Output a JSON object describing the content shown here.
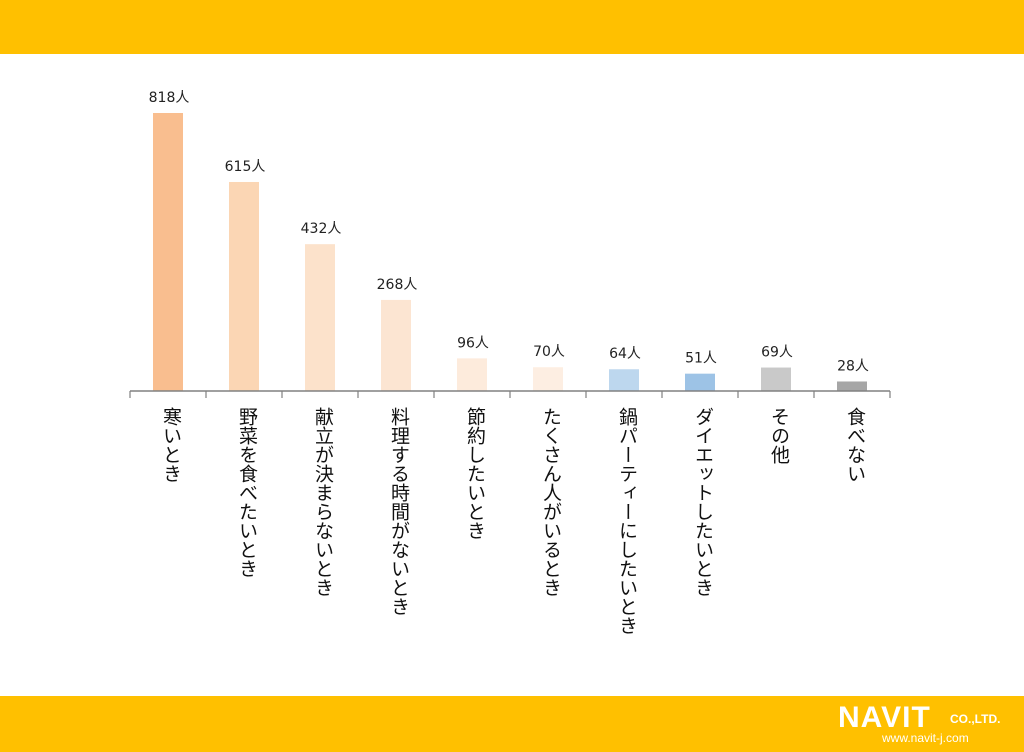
{
  "colors": {
    "band": "#FFC000",
    "axis": "#808080",
    "bars": [
      "#F9BE8F",
      "#FBD6B4",
      "#FCE2CB",
      "#FCE5D2",
      "#FDEBDC",
      "#FDEEE2",
      "#BDD7EE",
      "#9DC3E6",
      "#C9C9C9",
      "#A6A6A6"
    ]
  },
  "logo": {
    "name": "NAVIT",
    "suffix": "CO.,LTD.",
    "url": "www.navit-j.com"
  },
  "chart_data": {
    "type": "bar",
    "categories": [
      "寒いとき",
      "野菜を食べたいとき",
      "献立が決まらないとき",
      "料理する時間がないとき",
      "節約したいとき",
      "たくさん人がいるとき",
      "鍋パーティーにしたいとき",
      "ダイエットしたいとき",
      "その他",
      "食べない"
    ],
    "values": [
      818,
      615,
      432,
      268,
      96,
      70,
      64,
      51,
      69,
      28
    ],
    "value_labels": [
      "818人",
      "615人",
      "432人",
      "268人",
      "96人",
      "70人",
      "64人",
      "51人",
      "69人",
      "28人"
    ],
    "unit": "人",
    "title": "",
    "xlabel": "",
    "ylabel": "",
    "ylim": [
      0,
      818
    ],
    "grid": false,
    "legend": "none"
  }
}
